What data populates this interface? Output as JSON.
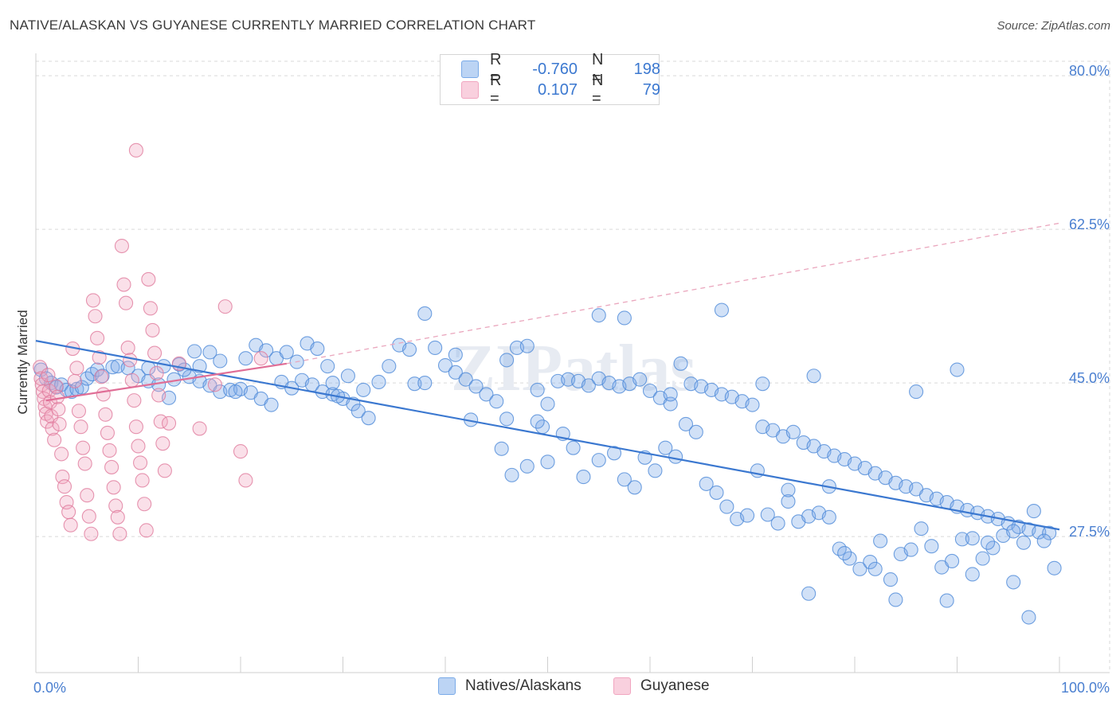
{
  "header": {
    "title": "NATIVE/ALASKAN VS GUYANESE CURRENTLY MARRIED CORRELATION CHART",
    "source": "Source: ZipAtlas.com"
  },
  "legend": {
    "rows": [
      {
        "r_label": "R =",
        "r_value": "-0.760",
        "n_label": "N =",
        "n_value": "198",
        "color": "#7aaae8"
      },
      {
        "r_label": "R =",
        "r_value": "0.107",
        "n_label": "N =",
        "n_value": "79",
        "color": "#f1a6c0"
      }
    ]
  },
  "bottom_legend": {
    "items": [
      {
        "label": "Natives/Alaskans",
        "color": "#7aaae8"
      },
      {
        "label": "Guyanese",
        "color": "#f1a6c0"
      }
    ]
  },
  "colors": {
    "blue": "#3b78d0",
    "blue_fill": "#7aaae8",
    "pink": "#e06e96",
    "pink_fill": "#f1a6c0",
    "grid": "#d9d9d9"
  },
  "chart_data": {
    "type": "scatter",
    "title": "NATIVE/ALASKAN VS GUYANESE CURRENTLY MARRIED CORRELATION CHART",
    "xlabel": "",
    "ylabel": "Currently Married",
    "xlim": [
      0,
      100
    ],
    "ylim": [
      12.0,
      83.0
    ],
    "x_tick_labels": [
      "0.0%",
      "100.0%"
    ],
    "y_ticks": [
      27.5,
      45.0,
      62.5,
      80.0
    ],
    "y_tick_labels": [
      "27.5%",
      "45.0%",
      "62.5%",
      "80.0%"
    ],
    "watermark": "ZIPatlas",
    "series": [
      {
        "name": "Natives/Alaskans",
        "color": "#7aaae8",
        "stroke": "#4d8ad8",
        "trend": {
          "x0": 0,
          "y0": 49.8,
          "x1": 100,
          "y1": 28.3,
          "dash_after": null
        },
        "points": [
          [
            0.5,
            46.5
          ],
          [
            1.0,
            45.5
          ],
          [
            1.5,
            45.0
          ],
          [
            2.0,
            44.5
          ],
          [
            2.5,
            44.8
          ],
          [
            3.0,
            44.2
          ],
          [
            3.5,
            44.0
          ],
          [
            4.0,
            44.3
          ],
          [
            4.5,
            44.5
          ],
          [
            5.0,
            45.5
          ],
          [
            5.5,
            46.0
          ],
          [
            6.0,
            46.5
          ],
          [
            6.5,
            45.8
          ],
          [
            7.5,
            46.8
          ],
          [
            8.0,
            46.9
          ],
          [
            9.0,
            46.7
          ],
          [
            10.0,
            45.8
          ],
          [
            11.0,
            45.2
          ],
          [
            12.0,
            44.8
          ],
          [
            13.0,
            43.3
          ],
          [
            13.5,
            45.4
          ],
          [
            15.0,
            45.7
          ],
          [
            16.0,
            45.2
          ],
          [
            17.0,
            44.7
          ],
          [
            18.0,
            44.0
          ],
          [
            19.0,
            44.2
          ],
          [
            20.0,
            44.3
          ],
          [
            21.0,
            43.9
          ],
          [
            22.0,
            43.2
          ],
          [
            23.0,
            42.5
          ],
          [
            24.0,
            45.1
          ],
          [
            25.0,
            44.4
          ],
          [
            26.0,
            45.3
          ],
          [
            27.0,
            44.8
          ],
          [
            28.0,
            44.0
          ],
          [
            29.0,
            43.7
          ],
          [
            30.0,
            43.2
          ],
          [
            31.0,
            42.6
          ],
          [
            32.0,
            44.2
          ],
          [
            11.0,
            46.7
          ],
          [
            12.5,
            46.9
          ],
          [
            14.0,
            47.1
          ],
          [
            14.5,
            46.5
          ],
          [
            15.5,
            48.6
          ],
          [
            16.0,
            46.9
          ],
          [
            17.0,
            48.5
          ],
          [
            18.0,
            47.5
          ],
          [
            19.5,
            44.0
          ],
          [
            20.5,
            47.8
          ],
          [
            21.5,
            49.3
          ],
          [
            22.5,
            48.7
          ],
          [
            23.5,
            47.8
          ],
          [
            24.5,
            48.5
          ],
          [
            25.5,
            47.4
          ],
          [
            26.5,
            49.5
          ],
          [
            27.5,
            48.9
          ],
          [
            28.5,
            46.9
          ],
          [
            29.5,
            43.5
          ],
          [
            30.5,
            45.8
          ],
          [
            31.5,
            41.8
          ],
          [
            32.5,
            41.0
          ],
          [
            33.5,
            45.1
          ],
          [
            34.5,
            46.9
          ],
          [
            35.5,
            49.3
          ],
          [
            36.5,
            48.8
          ],
          [
            37.0,
            44.9
          ],
          [
            38.0,
            45.0
          ],
          [
            39.0,
            49.0
          ],
          [
            40.0,
            47.0
          ],
          [
            41.0,
            46.2
          ],
          [
            42.0,
            45.4
          ],
          [
            43.0,
            44.6
          ],
          [
            44.0,
            43.7
          ],
          [
            45.0,
            42.9
          ],
          [
            46.0,
            47.6
          ],
          [
            47.0,
            49.0
          ],
          [
            48.0,
            49.2
          ],
          [
            49.0,
            44.2
          ],
          [
            50.0,
            42.6
          ],
          [
            51.0,
            45.2
          ],
          [
            52.0,
            45.4
          ],
          [
            53.0,
            45.2
          ],
          [
            54.0,
            44.7
          ],
          [
            55.0,
            45.5
          ],
          [
            56.0,
            45.0
          ],
          [
            57.0,
            44.6
          ],
          [
            58.0,
            44.9
          ],
          [
            59.0,
            45.4
          ],
          [
            60.0,
            44.1
          ],
          [
            61.0,
            43.3
          ],
          [
            62.0,
            42.6
          ],
          [
            63.0,
            47.2
          ],
          [
            64.0,
            44.9
          ],
          [
            65.0,
            44.6
          ],
          [
            66.0,
            44.2
          ],
          [
            67.0,
            43.7
          ],
          [
            68.0,
            43.4
          ],
          [
            69.0,
            42.9
          ],
          [
            70.0,
            42.5
          ],
          [
            71.0,
            40.0
          ],
          [
            72.0,
            39.6
          ],
          [
            73.0,
            38.9
          ],
          [
            74.0,
            39.4
          ],
          [
            75.0,
            38.2
          ],
          [
            76.0,
            37.8
          ],
          [
            77.0,
            37.2
          ],
          [
            78.0,
            36.7
          ],
          [
            79.0,
            36.3
          ],
          [
            80.0,
            35.8
          ],
          [
            81.0,
            35.3
          ],
          [
            82.0,
            34.7
          ],
          [
            83.0,
            34.2
          ],
          [
            84.0,
            33.6
          ],
          [
            85.0,
            33.2
          ],
          [
            86.0,
            32.9
          ],
          [
            87.0,
            32.2
          ],
          [
            88.0,
            31.8
          ],
          [
            89.0,
            31.4
          ],
          [
            90.0,
            30.9
          ],
          [
            91.0,
            30.5
          ],
          [
            92.0,
            30.2
          ],
          [
            93.0,
            29.8
          ],
          [
            94.0,
            29.5
          ],
          [
            95.0,
            29.0
          ],
          [
            96.0,
            28.6
          ],
          [
            97.0,
            28.3
          ],
          [
            98.0,
            28.0
          ],
          [
            99.0,
            27.9
          ],
          [
            29.0,
            45.0
          ],
          [
            42.5,
            40.8
          ],
          [
            45.5,
            37.5
          ],
          [
            46.5,
            34.5
          ],
          [
            48.0,
            35.5
          ],
          [
            49.5,
            40.0
          ],
          [
            51.5,
            39.2
          ],
          [
            52.5,
            37.6
          ],
          [
            53.5,
            34.3
          ],
          [
            55.0,
            36.2
          ],
          [
            56.5,
            37.0
          ],
          [
            57.5,
            34.0
          ],
          [
            58.5,
            33.1
          ],
          [
            59.5,
            36.5
          ],
          [
            60.5,
            35.0
          ],
          [
            61.5,
            37.6
          ],
          [
            62.5,
            36.6
          ],
          [
            63.5,
            40.3
          ],
          [
            64.5,
            39.4
          ],
          [
            65.5,
            33.5
          ],
          [
            66.5,
            32.5
          ],
          [
            67.5,
            30.9
          ],
          [
            68.5,
            29.5
          ],
          [
            69.5,
            29.9
          ],
          [
            70.5,
            35.0
          ],
          [
            71.5,
            30.0
          ],
          [
            72.5,
            29.0
          ],
          [
            73.5,
            31.5
          ],
          [
            74.5,
            29.2
          ],
          [
            75.5,
            29.8
          ],
          [
            76.5,
            30.2
          ],
          [
            77.5,
            33.2
          ],
          [
            78.5,
            26.1
          ],
          [
            79.5,
            25.0
          ],
          [
            80.5,
            23.8
          ],
          [
            81.5,
            24.6
          ],
          [
            82.5,
            27.0
          ],
          [
            83.5,
            22.6
          ],
          [
            84.5,
            25.5
          ],
          [
            85.5,
            26.0
          ],
          [
            86.5,
            28.4
          ],
          [
            87.5,
            26.4
          ],
          [
            88.5,
            24.0
          ],
          [
            89.5,
            24.7
          ],
          [
            90.5,
            27.2
          ],
          [
            91.5,
            23.2
          ],
          [
            92.5,
            25.0
          ],
          [
            93.5,
            26.2
          ],
          [
            94.5,
            27.6
          ],
          [
            95.5,
            28.1
          ],
          [
            96.5,
            26.8
          ],
          [
            97.5,
            30.4
          ],
          [
            98.5,
            27.0
          ],
          [
            99.5,
            23.9
          ],
          [
            38.0,
            52.9
          ],
          [
            41.0,
            48.2
          ],
          [
            46.0,
            40.9
          ],
          [
            49.0,
            40.6
          ],
          [
            50.0,
            36.0
          ],
          [
            55.0,
            52.7
          ],
          [
            57.5,
            52.4
          ],
          [
            62.0,
            43.7
          ],
          [
            67.0,
            53.3
          ],
          [
            71.0,
            44.9
          ],
          [
            73.5,
            32.8
          ],
          [
            75.5,
            21.0
          ],
          [
            77.5,
            29.7
          ],
          [
            79.0,
            25.6
          ],
          [
            82.0,
            23.8
          ],
          [
            84.0,
            20.3
          ],
          [
            86.0,
            44.0
          ],
          [
            89.0,
            20.2
          ],
          [
            91.5,
            27.3
          ],
          [
            93.0,
            26.8
          ],
          [
            95.5,
            22.3
          ],
          [
            97.0,
            18.3
          ],
          [
            90.0,
            46.5
          ],
          [
            76.0,
            45.8
          ]
        ]
      },
      {
        "name": "Guyanese",
        "color": "#f1a6c0",
        "stroke": "#e07a9c",
        "trend": {
          "x0": 1.0,
          "y0": 43.0,
          "x1": 24.5,
          "y1": 47.2,
          "dash_x1": 100,
          "dash_y1": 63.2
        },
        "points": [
          [
            0.4,
            46.8
          ],
          [
            0.5,
            45.5
          ],
          [
            0.6,
            44.8
          ],
          [
            0.7,
            44.0
          ],
          [
            0.8,
            43.2
          ],
          [
            0.9,
            42.3
          ],
          [
            1.0,
            41.5
          ],
          [
            1.1,
            40.6
          ],
          [
            1.2,
            45.9
          ],
          [
            1.3,
            44.1
          ],
          [
            1.4,
            42.8
          ],
          [
            1.5,
            41.2
          ],
          [
            1.6,
            39.8
          ],
          [
            1.8,
            38.5
          ],
          [
            2.0,
            44.6
          ],
          [
            2.1,
            43.4
          ],
          [
            2.2,
            42.0
          ],
          [
            2.3,
            40.3
          ],
          [
            2.5,
            36.9
          ],
          [
            2.6,
            34.3
          ],
          [
            2.8,
            33.2
          ],
          [
            3.0,
            31.4
          ],
          [
            3.2,
            30.3
          ],
          [
            3.4,
            28.8
          ],
          [
            3.6,
            48.9
          ],
          [
            3.8,
            45.2
          ],
          [
            4.0,
            46.7
          ],
          [
            4.2,
            41.8
          ],
          [
            4.4,
            40.0
          ],
          [
            4.6,
            37.6
          ],
          [
            4.8,
            35.8
          ],
          [
            5.0,
            32.2
          ],
          [
            5.2,
            29.8
          ],
          [
            5.4,
            27.8
          ],
          [
            5.6,
            54.4
          ],
          [
            5.8,
            52.6
          ],
          [
            6.0,
            50.1
          ],
          [
            6.2,
            47.9
          ],
          [
            6.4,
            45.7
          ],
          [
            6.6,
            43.7
          ],
          [
            6.8,
            41.4
          ],
          [
            7.0,
            39.3
          ],
          [
            7.2,
            37.3
          ],
          [
            7.4,
            35.4
          ],
          [
            7.6,
            33.1
          ],
          [
            7.8,
            31.0
          ],
          [
            8.0,
            29.7
          ],
          [
            8.2,
            27.8
          ],
          [
            8.4,
            60.6
          ],
          [
            8.6,
            56.2
          ],
          [
            8.8,
            54.1
          ],
          [
            9.0,
            49.0
          ],
          [
            9.2,
            47.6
          ],
          [
            9.4,
            45.3
          ],
          [
            9.6,
            43.0
          ],
          [
            9.8,
            40.0
          ],
          [
            10.0,
            37.8
          ],
          [
            10.2,
            35.9
          ],
          [
            10.4,
            33.9
          ],
          [
            10.6,
            31.2
          ],
          [
            10.8,
            28.2
          ],
          [
            11.0,
            56.8
          ],
          [
            11.2,
            53.5
          ],
          [
            11.4,
            51.0
          ],
          [
            11.6,
            48.4
          ],
          [
            11.8,
            46.1
          ],
          [
            12.0,
            43.6
          ],
          [
            12.2,
            40.6
          ],
          [
            12.4,
            38.1
          ],
          [
            12.6,
            35.0
          ],
          [
            13.0,
            40.4
          ],
          [
            14.0,
            47.2
          ],
          [
            16.0,
            39.8
          ],
          [
            17.5,
            44.8
          ],
          [
            18.5,
            53.7
          ],
          [
            20.0,
            37.2
          ],
          [
            20.5,
            33.9
          ],
          [
            22.0,
            47.8
          ],
          [
            9.8,
            71.5
          ]
        ]
      }
    ]
  }
}
